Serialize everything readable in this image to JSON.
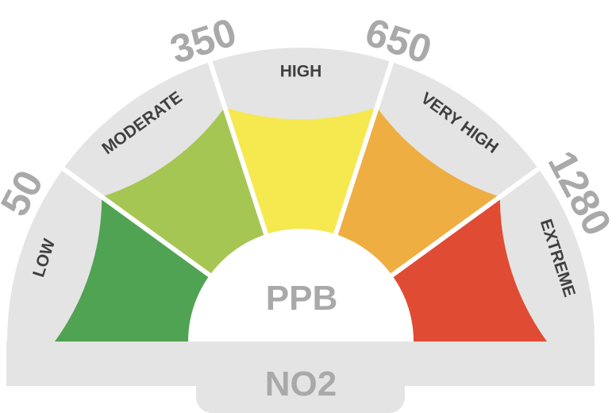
{
  "gauge": {
    "unit": "PPB",
    "pollutant": "NO2",
    "colors": {
      "band": "#e4e4e4",
      "separator": "#ffffff",
      "inner": "#ffffff",
      "threshold_text": "#a9a9a9",
      "label_text": "#3f3f3f"
    },
    "segments": [
      {
        "label": "LOW",
        "color": "#50a352"
      },
      {
        "label": "MODERATE",
        "color": "#a6c653"
      },
      {
        "label": "HIGH",
        "color": "#f6e84f"
      },
      {
        "label": "VERY HIGH",
        "color": "#eeae41"
      },
      {
        "label": "EXTREME",
        "color": "#e04b34"
      }
    ],
    "thresholds": [
      "50",
      "350",
      "650",
      "1280"
    ]
  }
}
